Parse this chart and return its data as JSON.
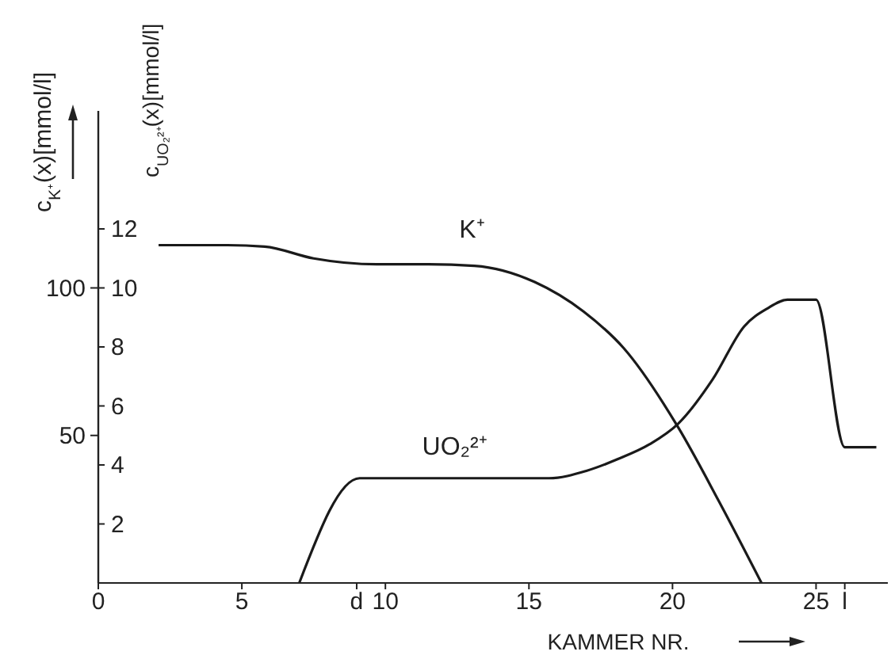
{
  "chart_data": {
    "type": "line",
    "xlabel": "KAMMER NR.",
    "ylabel": "c$_{K⁺}$(x)[mmol/l]",
    "y2label": "c$_{UO₂²⁺}$(x)[mmol/l]",
    "xlim": [
      0,
      27.5
    ],
    "xticks": [
      0,
      5,
      {
        "value": 9,
        "label": "d"
      },
      10,
      15,
      20,
      25,
      {
        "value": 26,
        "label": "l"
      }
    ],
    "ylim": [
      0,
      160
    ],
    "yticks": [
      50,
      100
    ],
    "y2lim": [
      0,
      16
    ],
    "y2ticks": [
      2,
      4,
      6,
      8,
      10,
      12
    ],
    "grid": false,
    "legend": false,
    "marker": "none",
    "line_style": "solid",
    "series": [
      {
        "name": "K⁺",
        "color": "#1a1a1a",
        "x": [
          2.1,
          4.5,
          5.8,
          7.5,
          9.7,
          11.5,
          13.1,
          15.2,
          16.9,
          18.3,
          20.2,
          21.6,
          23.1
        ],
        "values": [
          114.5,
          114.5,
          114,
          110,
          108,
          108,
          107.5,
          102,
          92,
          79.6,
          52.7,
          28,
          0
        ]
      },
      {
        "name": "UO₂²⁺",
        "color": "#1a1a1a",
        "axis": "y2",
        "x": [
          7.0,
          9.1,
          12,
          15.7,
          17,
          18.1,
          19.2,
          20.2,
          21.4,
          22.5,
          23.3,
          24.0,
          25.0,
          26.0,
          27.1
        ],
        "values": [
          0,
          3.55,
          3.55,
          3.55,
          3.8,
          4.2,
          4.7,
          5.4,
          6.9,
          8.7,
          9.3,
          9.6,
          9.6,
          4.6,
          4.6
        ]
      }
    ]
  }
}
